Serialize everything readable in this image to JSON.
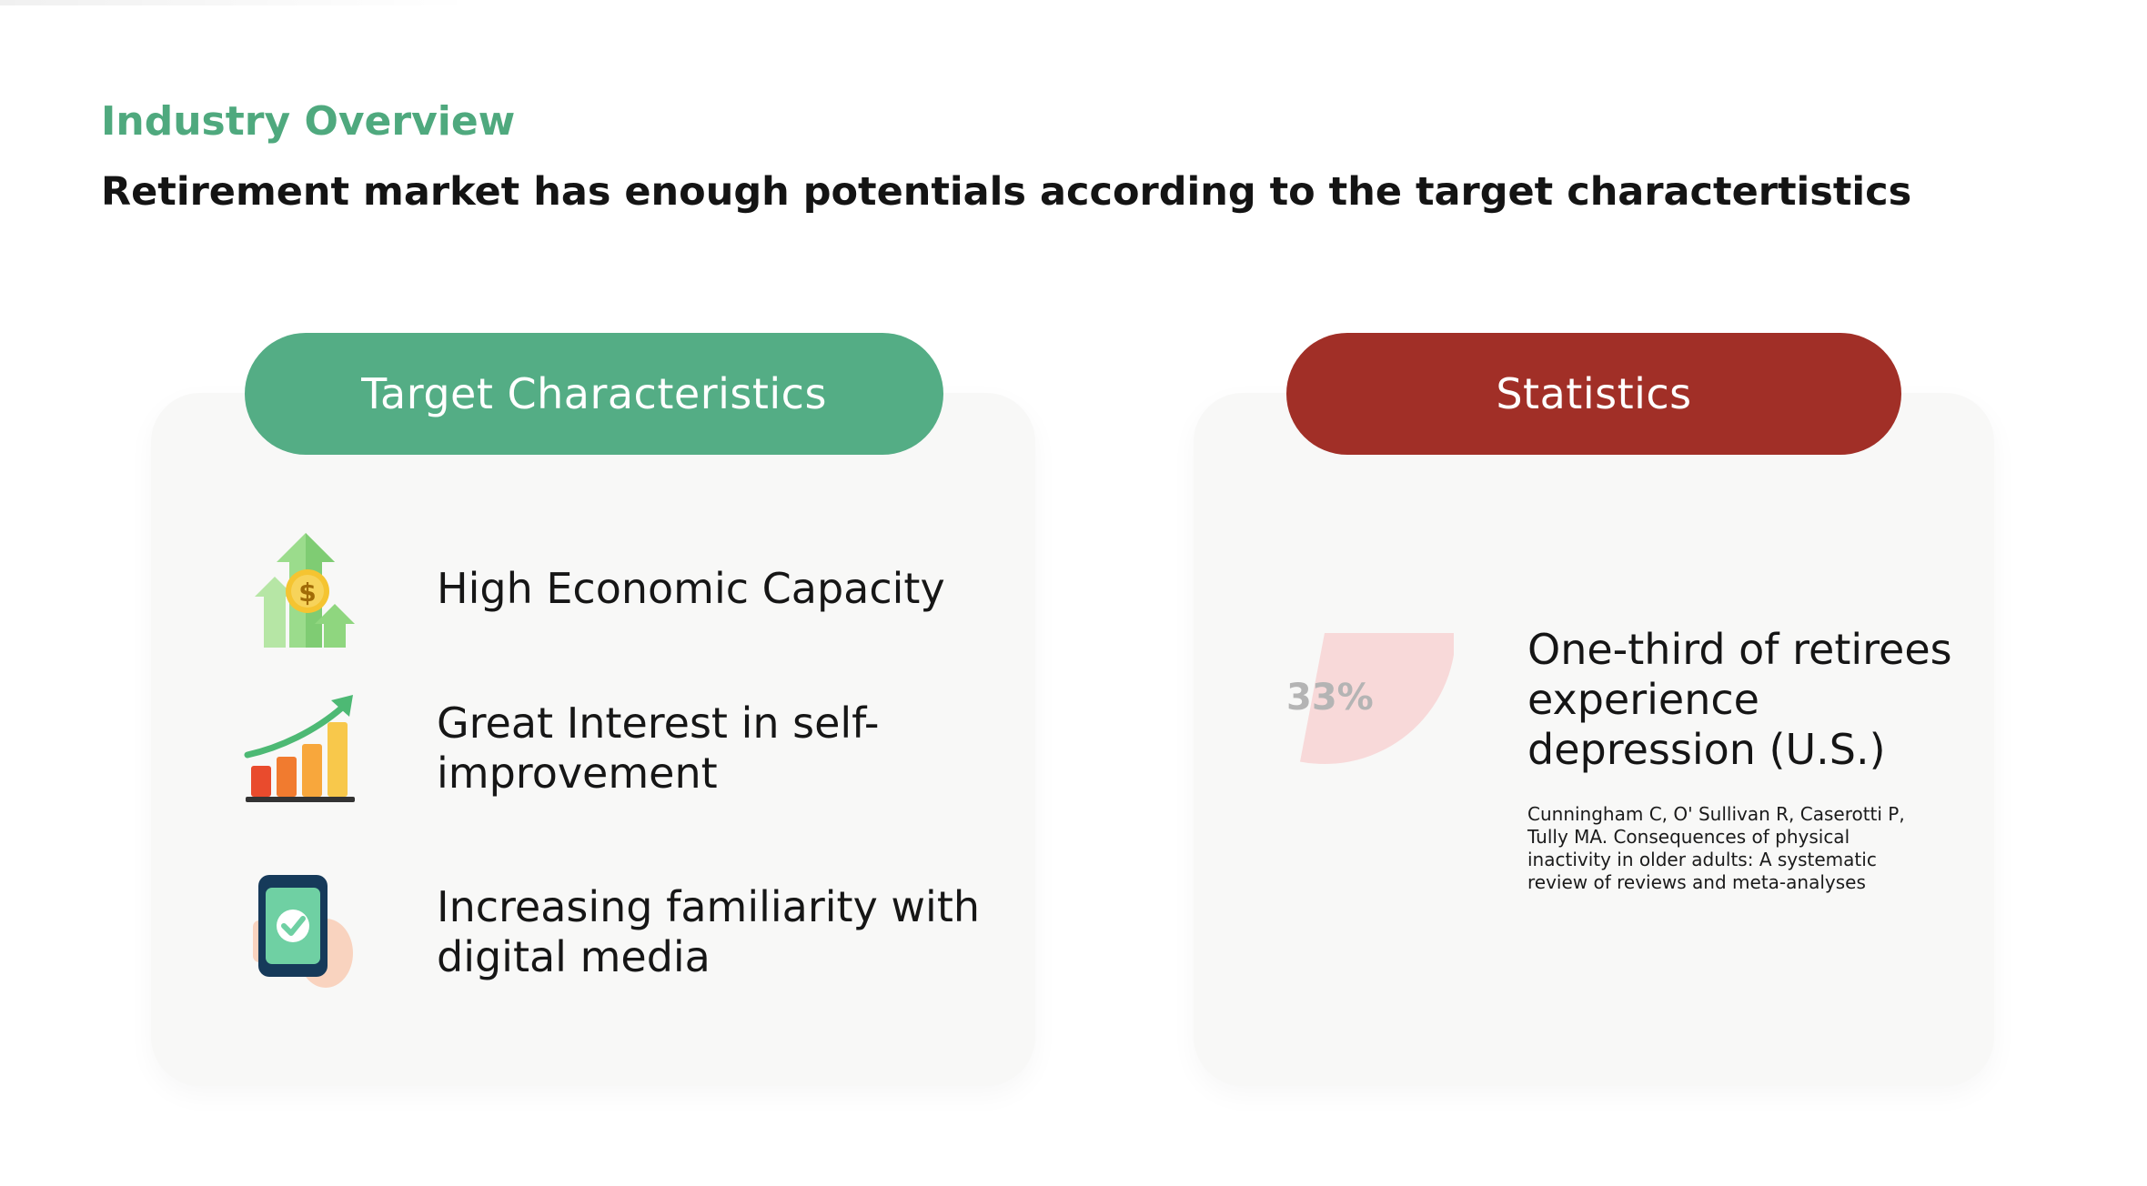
{
  "header": {
    "eyebrow": "Industry Overview",
    "headline": "Retirement market has enough potentials according to the target charactertistics"
  },
  "target_card": {
    "title": "Target Characteristics",
    "color": "#54ad85",
    "items": [
      {
        "icon": "money-growth-icon",
        "label": "High Economic Capacity"
      },
      {
        "icon": "growth-chart-icon",
        "label": "Great Interest in self-improvement"
      },
      {
        "icon": "smartphone-check-icon",
        "label": "Increasing familiarity with digital media"
      }
    ]
  },
  "stats_card": {
    "title": "Statistics",
    "color": "#a12f27",
    "stat_text": "One-third of retirees experience depression (U.S.)",
    "citation": "Cunningham C, O' Sullivan R, Caserotti P, Tully MA. Consequences of physical inactivity in older adults: A systematic review of reviews and meta-analyses"
  },
  "chart_data": {
    "type": "pie",
    "values": [
      33
    ],
    "labels": [
      "33%"
    ],
    "color": "#f8d9d9",
    "label_color": "#b4b4b4"
  }
}
